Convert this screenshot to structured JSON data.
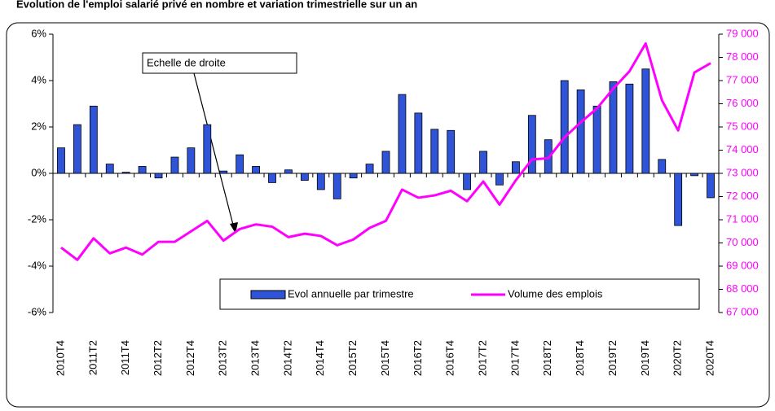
{
  "chart_data": {
    "type": "bar-line",
    "title": "Evolution de l'emploi salarié privé en nombre et variation trimestrielle sur un an",
    "annotation": "Echelle de droite",
    "categories": [
      "2010T4",
      null,
      "2011T2",
      null,
      "2011T4",
      null,
      "2012T2",
      null,
      "2012T4",
      null,
      "2013T2",
      null,
      "2013T4",
      null,
      "2014T2",
      null,
      "2014T4",
      null,
      "2015T2",
      null,
      "2015T4",
      null,
      "2016T2",
      null,
      "2016T4",
      null,
      "2017T2",
      null,
      "2017T4",
      null,
      "2018T2",
      null,
      "2018T4",
      null,
      "2019T2",
      null,
      "2019T4",
      null,
      "2020T2",
      null,
      "2020T4"
    ],
    "series": [
      {
        "name": "Evol annuelle par trimestre",
        "type": "bar",
        "color": "#2f54d8",
        "values": [
          1.1,
          2.1,
          2.9,
          0.4,
          0.05,
          0.3,
          -0.2,
          0.7,
          1.1,
          2.1,
          0.1,
          0.8,
          0.3,
          -0.4,
          0.15,
          -0.3,
          -0.7,
          -1.1,
          -0.2,
          0.4,
          0.95,
          3.4,
          2.6,
          1.9,
          1.85,
          -0.7,
          0.95,
          -0.5,
          0.5,
          2.5,
          1.45,
          4.0,
          3.6,
          2.9,
          3.95,
          3.85,
          4.5,
          0.6,
          -2.25,
          -0.1,
          -1.05
        ]
      },
      {
        "name": "Volume des emplois",
        "type": "line",
        "axis": "y2",
        "color": "#ff00ff",
        "values": [
          69800,
          69270,
          70200,
          69550,
          69800,
          69500,
          70050,
          70050,
          70500,
          70950,
          70100,
          70600,
          70800,
          70700,
          70250,
          70400,
          70300,
          69900,
          70150,
          70650,
          70950,
          72300,
          71950,
          72050,
          72250,
          71800,
          72650,
          71650,
          72700,
          73600,
          73650,
          74550,
          75200,
          75800,
          76650,
          77400,
          78600,
          76150,
          74850,
          77350,
          77750
        ]
      }
    ],
    "ylim": [
      -6,
      6
    ],
    "yticks": [
      {
        "value": -6,
        "label": "-6%"
      },
      {
        "value": -4,
        "label": "-4%"
      },
      {
        "value": -2,
        "label": "-2%"
      },
      {
        "value": 0,
        "label": "0%"
      },
      {
        "value": 2,
        "label": "2%"
      },
      {
        "value": 4,
        "label": "4%"
      },
      {
        "value": 6,
        "label": "6%"
      }
    ],
    "y2lim": [
      67000,
      79000
    ],
    "y2ticks": [
      {
        "value": 67000,
        "label": "67 000"
      },
      {
        "value": 68000,
        "label": "68 000"
      },
      {
        "value": 69000,
        "label": "69 000"
      },
      {
        "value": 70000,
        "label": "70 000"
      },
      {
        "value": 71000,
        "label": "71 000"
      },
      {
        "value": 72000,
        "label": "72 000"
      },
      {
        "value": 73000,
        "label": "73 000"
      },
      {
        "value": 74000,
        "label": "74 000"
      },
      {
        "value": 75000,
        "label": "75 000"
      },
      {
        "value": 76000,
        "label": "76 000"
      },
      {
        "value": 77000,
        "label": "77 000"
      },
      {
        "value": 78000,
        "label": "78 000"
      },
      {
        "value": 79000,
        "label": "79 000"
      }
    ],
    "y2color": "#ff00ff"
  }
}
